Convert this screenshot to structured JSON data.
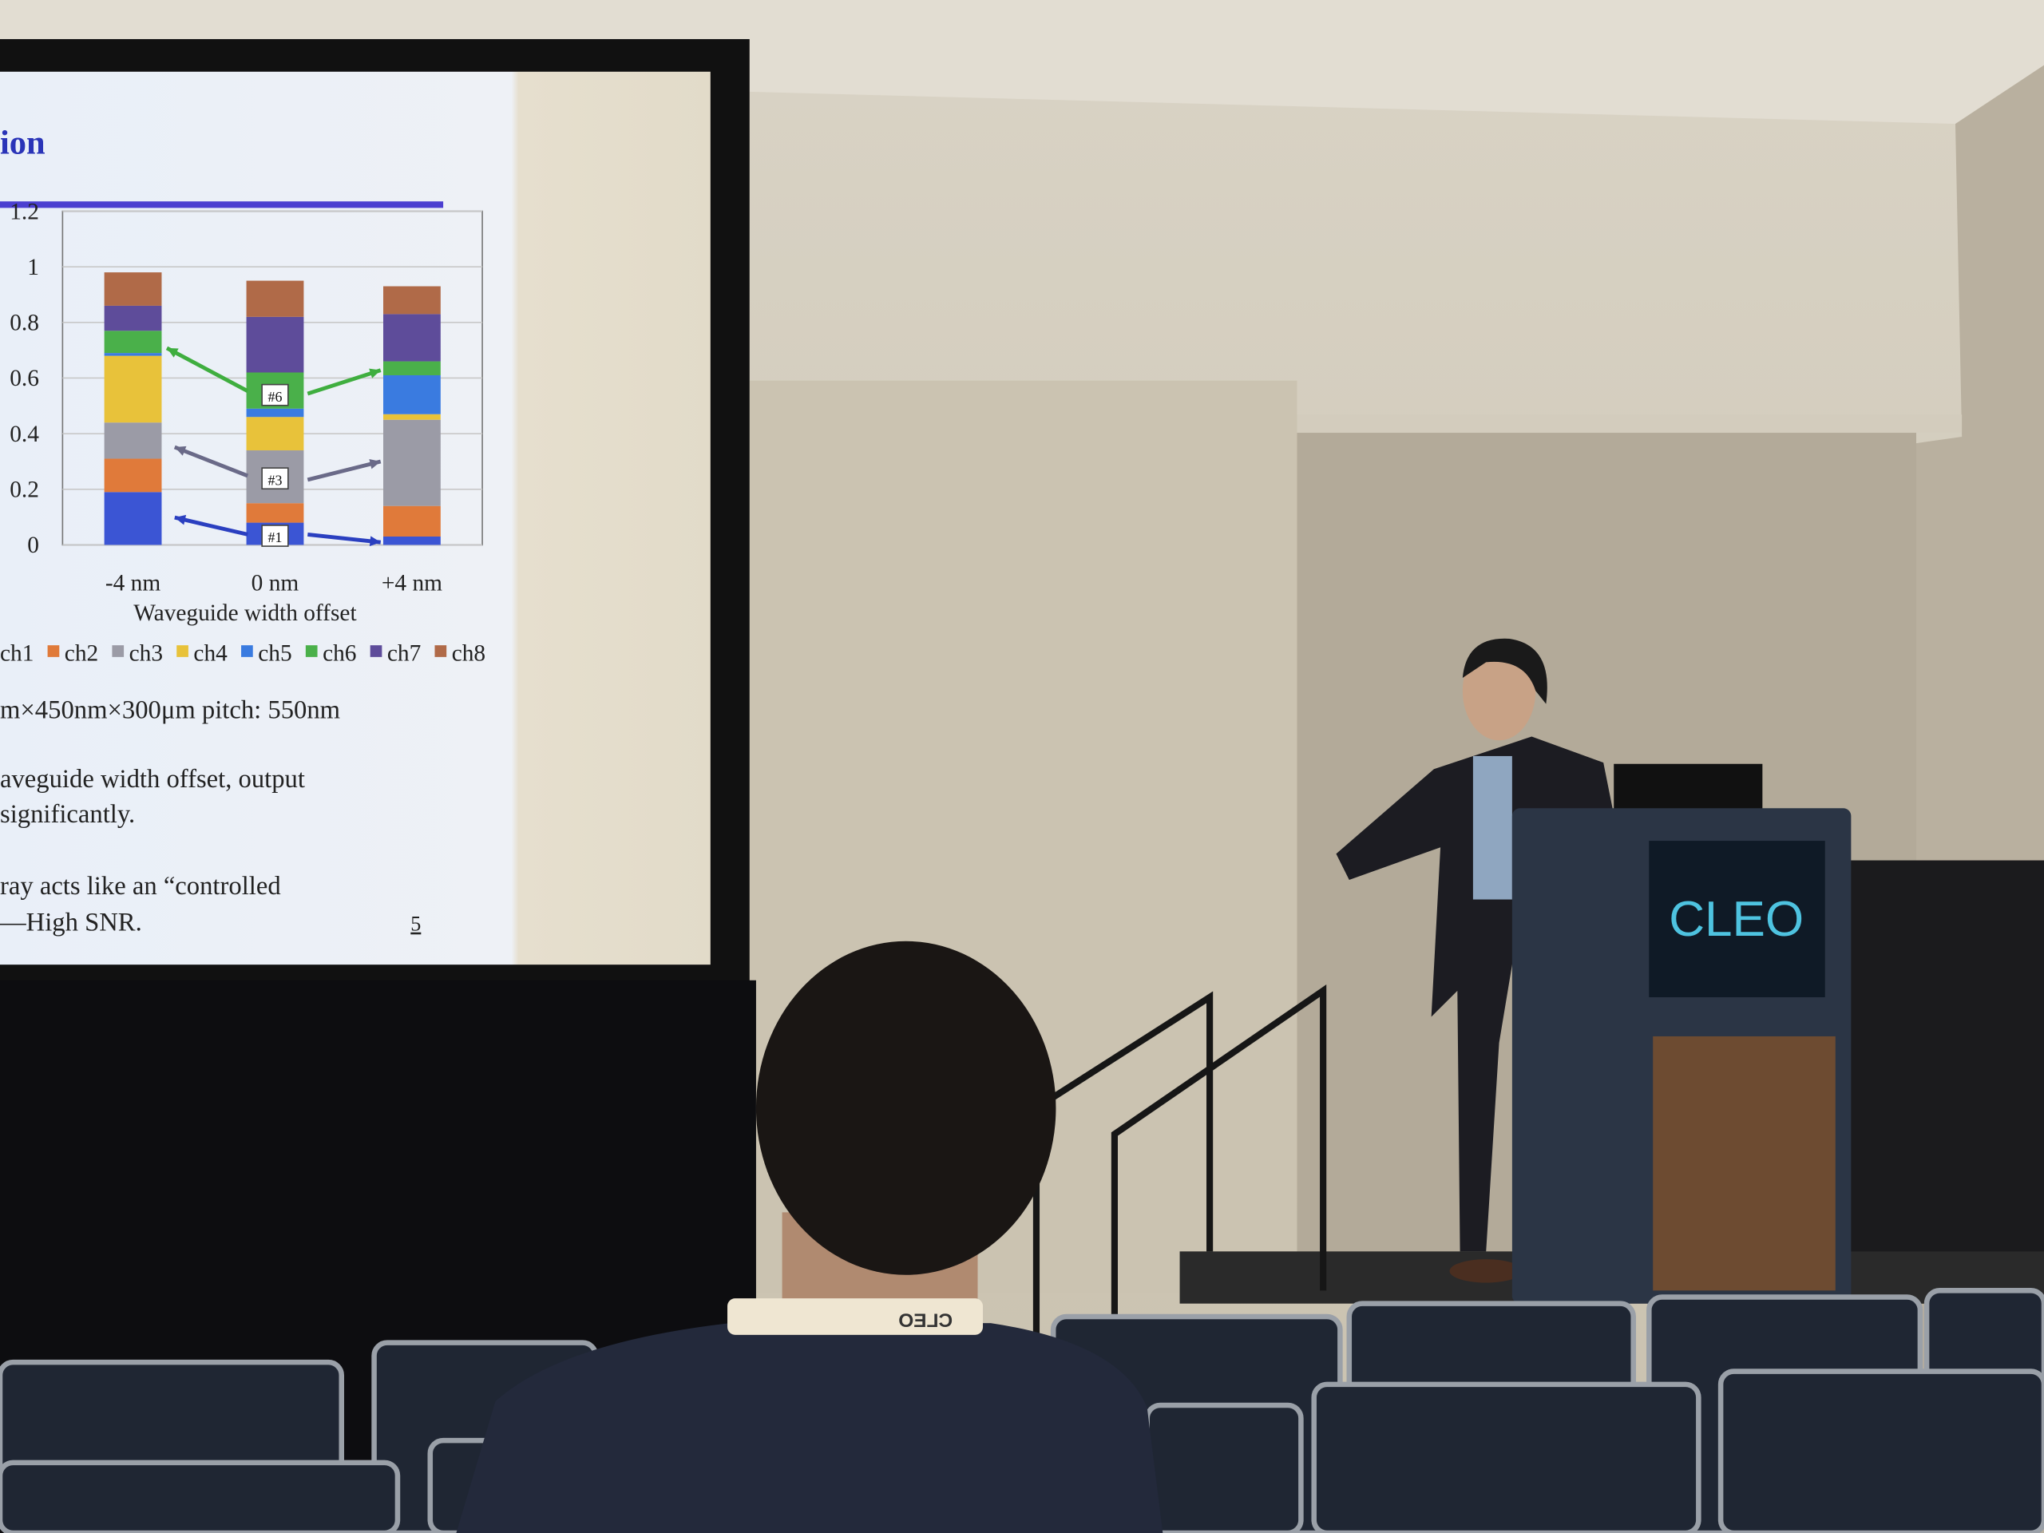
{
  "chart_data": {
    "type": "stacked-bar",
    "x_label": "Waveguide width offset",
    "categories": [
      "-4 nm",
      "0 nm",
      "+4 nm"
    ],
    "series": [
      {
        "name": "ch1",
        "color": "#3b55d4",
        "values": [
          0.19,
          0.08,
          0.03
        ]
      },
      {
        "name": "ch2",
        "color": "#e07a3a",
        "values": [
          0.12,
          0.07,
          0.11
        ]
      },
      {
        "name": "ch3",
        "color": "#9b9ba6",
        "values": [
          0.13,
          0.19,
          0.31
        ]
      },
      {
        "name": "ch4",
        "color": "#e8c23a",
        "values": [
          0.24,
          0.12,
          0.02
        ]
      },
      {
        "name": "ch5",
        "color": "#3a7be0",
        "values": [
          0.01,
          0.03,
          0.14
        ]
      },
      {
        "name": "ch6",
        "color": "#4ab04a",
        "values": [
          0.08,
          0.13,
          0.05
        ]
      },
      {
        "name": "ch7",
        "color": "#5e4c9a",
        "values": [
          0.09,
          0.2,
          0.17
        ]
      },
      {
        "name": "ch8",
        "color": "#b06a48",
        "values": [
          0.12,
          0.13,
          0.1
        ]
      }
    ],
    "ylim": [
      0,
      1.2
    ],
    "yticks": [
      0,
      0.2,
      0.4,
      0.6,
      0.8,
      1,
      1.2
    ],
    "annotations": [
      "#1",
      "#3",
      "#6"
    ]
  },
  "slide": {
    "title": "ion",
    "lines": [
      "m×450nm×300μm pitch: 550nm",
      "aveguide width offset, output",
      "significantly.",
      "ray acts like an “controlled",
      "—High SNR."
    ],
    "page_number": "5"
  },
  "podium": {
    "logo": "CLEO"
  },
  "badge": {
    "text": "CLEO"
  }
}
